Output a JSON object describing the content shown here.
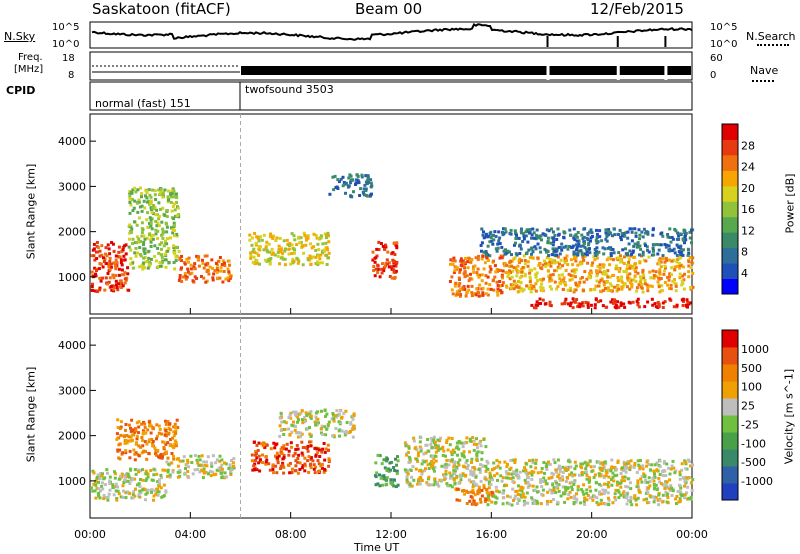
{
  "header": {
    "station": "Saskatoon (fitACF)",
    "beam": "Beam 00",
    "date": "12/Feb/2015"
  },
  "noise_panel": {
    "left_label": "N.Sky",
    "right_label": "N.Search",
    "right_ticks": [
      "10^5",
      "10^0"
    ],
    "left_ticks": [
      "10^5",
      "10^0"
    ]
  },
  "freq_panel": {
    "left_label_1": "Freq.",
    "left_label_2": "[MHz]",
    "left_ticks": [
      "18",
      "8"
    ],
    "right_ticks": [
      "60",
      "0"
    ],
    "right_label": "Nave"
  },
  "cpid": {
    "label": "CPID",
    "modes": [
      {
        "name": "normal (fast) 151",
        "start_hour": 0,
        "end_hour": 6
      },
      {
        "name": "twofsound 3503",
        "start_hour": 6,
        "end_hour": 24
      }
    ]
  },
  "chart_data": [
    {
      "type": "heatmap",
      "title": "Power",
      "ylabel": "Slant Range [km]",
      "xlabel": "",
      "ylim": [
        180,
        4600
      ],
      "yticks": [
        "1000",
        "2000",
        "3000",
        "4000"
      ],
      "xlim": [
        0,
        24
      ],
      "colorbar": {
        "label": "Power [dB]",
        "ticks": [
          "28",
          "24",
          "20",
          "16",
          "12",
          "8",
          "4"
        ],
        "colors": [
          "#0000ff",
          "#1f4fb8",
          "#2e6e9a",
          "#3a8a6a",
          "#58a84e",
          "#90c23a",
          "#d6d21e",
          "#f7a500",
          "#f07010",
          "#e83a10",
          "#e00000"
        ]
      },
      "regions": [
        {
          "x0": 0.0,
          "x1": 1.5,
          "y0": 700,
          "y1": 1800,
          "level": 9
        },
        {
          "x0": 1.5,
          "x1": 3.5,
          "y0": 1200,
          "y1": 3000,
          "level": 5
        },
        {
          "x0": 3.5,
          "x1": 5.6,
          "y0": 900,
          "y1": 1500,
          "level": 8
        },
        {
          "x0": 6.3,
          "x1": 9.5,
          "y0": 1300,
          "y1": 2000,
          "level": 6
        },
        {
          "x0": 9.5,
          "x1": 11.2,
          "y0": 2800,
          "y1": 3300,
          "level": 2
        },
        {
          "x0": 11.2,
          "x1": 12.2,
          "y0": 1000,
          "y1": 1800,
          "level": 9
        },
        {
          "x0": 14.3,
          "x1": 16.5,
          "y0": 600,
          "y1": 1500,
          "level": 8
        },
        {
          "x0": 16.5,
          "x1": 24.0,
          "y0": 700,
          "y1": 1500,
          "level": 7
        },
        {
          "x0": 17.5,
          "x1": 24.0,
          "y0": 350,
          "y1": 550,
          "level": 10
        },
        {
          "x0": 15.5,
          "x1": 24.0,
          "y0": 1500,
          "y1": 2100,
          "level": 2
        }
      ]
    },
    {
      "type": "heatmap",
      "title": "Velocity",
      "ylabel": "Slant Range [km]",
      "xlabel": "Time UT",
      "ylim": [
        180,
        4600
      ],
      "yticks": [
        "1000",
        "2000",
        "3000",
        "4000"
      ],
      "xticks": [
        "00:00",
        "04:00",
        "08:00",
        "12:00",
        "16:00",
        "20:00",
        "00:00"
      ],
      "xlim": [
        0,
        24
      ],
      "colorbar": {
        "label": "Velocity [m s^-1]",
        "ticks": [
          "1000",
          "500",
          "100",
          "25",
          "-25",
          "-100",
          "-500",
          "-1000"
        ],
        "colors": [
          "#2040c0",
          "#3060a8",
          "#3a8a6a",
          "#48a048",
          "#70c040",
          "#bebebe",
          "#f0a000",
          "#f08000",
          "#e85010",
          "#e00000"
        ]
      },
      "regions": [
        {
          "x0": 0.0,
          "x1": 3.0,
          "y0": 600,
          "y1": 1300,
          "level": 5
        },
        {
          "x0": 1.0,
          "x1": 3.5,
          "y0": 1500,
          "y1": 2400,
          "level": 7
        },
        {
          "x0": 3.0,
          "x1": 5.7,
          "y0": 1100,
          "y1": 1600,
          "level": 5
        },
        {
          "x0": 6.4,
          "x1": 9.5,
          "y0": 1200,
          "y1": 1900,
          "level": 8
        },
        {
          "x0": 7.5,
          "x1": 10.5,
          "y0": 2000,
          "y1": 2600,
          "level": 5
        },
        {
          "x0": 11.3,
          "x1": 12.3,
          "y0": 900,
          "y1": 1600,
          "level": 3
        },
        {
          "x0": 12.5,
          "x1": 15.8,
          "y0": 900,
          "y1": 2000,
          "level": 5
        },
        {
          "x0": 15.8,
          "x1": 24.0,
          "y0": 500,
          "y1": 1500,
          "level": 5
        },
        {
          "x0": 14.5,
          "x1": 16.0,
          "y0": 500,
          "y1": 900,
          "level": 7
        }
      ]
    }
  ]
}
